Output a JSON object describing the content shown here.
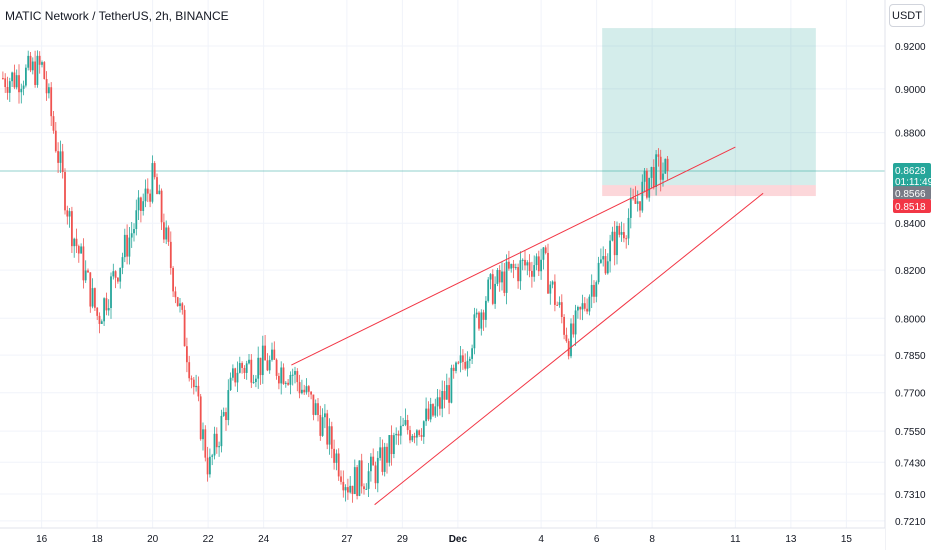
{
  "header": {
    "symbol": "MATIC Network / TetherUS",
    "interval": "2h",
    "exchange": "BINANCE"
  },
  "currency_button": "USDT",
  "colors": {
    "up": "#26a69a",
    "down": "#ef5350",
    "trendline": "#f23645",
    "target_zone": "rgba(38,166,154,0.2)",
    "stop_zone": "rgba(242,54,69,0.2)",
    "current_price_line": "#26a69a",
    "grid": "#f0f3fa",
    "axis_text": "#131722"
  },
  "price_axis": {
    "ticks": [
      "0.9200",
      "0.9000",
      "0.8800",
      "0.8400",
      "0.8200",
      "0.8000",
      "0.7850",
      "0.7700",
      "0.7550",
      "0.7430",
      "0.7310",
      "0.7210"
    ],
    "labels": [
      {
        "text": "0.8628",
        "sub": "01:11:49",
        "color": "#26a69a"
      },
      {
        "text": "0.8566",
        "color": "#787b86"
      },
      {
        "text": "0.8518",
        "color": "#f23645"
      }
    ]
  },
  "time_axis": {
    "ticks": [
      "16",
      "18",
      "20",
      "22",
      "24",
      "27",
      "29",
      "Dec",
      "4",
      "6",
      "8",
      "11",
      "13",
      "15"
    ]
  },
  "chart_data": {
    "type": "candlestick",
    "symbol": "MATIC Network / TetherUS",
    "interval": "2h",
    "exchange": "BINANCE",
    "y_axis": {
      "scale": "log",
      "ticks": [
        0.92,
        0.9,
        0.88,
        0.84,
        0.82,
        0.8,
        0.785,
        0.77,
        0.755,
        0.743,
        0.731,
        0.721
      ],
      "range": [
        0.719,
        0.945
      ]
    },
    "x_axis": {
      "tick_labels": [
        "16",
        "18",
        "20",
        "22",
        "24",
        "27",
        "29",
        "Dec",
        "4",
        "6",
        "8",
        "11",
        "13",
        "15"
      ]
    },
    "last_price": 0.8628,
    "countdown": "01:11:49",
    "position": {
      "entry": 0.8566,
      "stop": 0.8518,
      "target": 0.9285
    },
    "rising_wedge": {
      "upper_trendline": [
        {
          "x": "Nov 25",
          "y": 0.781
        },
        {
          "x": "Dec 11",
          "y": 0.8735
        }
      ],
      "lower_trendline": [
        {
          "x": "Nov 28",
          "y": 0.727
        },
        {
          "x": "Dec 12",
          "y": 0.853
        }
      ]
    },
    "price_path": [
      {
        "x": "Nov 15",
        "y": 0.905
      },
      {
        "x": "Nov 16",
        "y": 0.91
      },
      {
        "x": "Nov 17",
        "y": 0.84
      },
      {
        "x": "Nov 18",
        "y": 0.8
      },
      {
        "x": "Nov 19",
        "y": 0.83
      },
      {
        "x": "Nov 20",
        "y": 0.86
      },
      {
        "x": "Nov 21",
        "y": 0.8
      },
      {
        "x": "Nov 22",
        "y": 0.74
      },
      {
        "x": "Nov 23",
        "y": 0.78
      },
      {
        "x": "Nov 24",
        "y": 0.782
      },
      {
        "x": "Nov 25",
        "y": 0.778
      },
      {
        "x": "Nov 26",
        "y": 0.76
      },
      {
        "x": "Nov 27",
        "y": 0.735
      },
      {
        "x": "Nov 28",
        "y": 0.74
      },
      {
        "x": "Nov 29",
        "y": 0.755
      },
      {
        "x": "Nov 30",
        "y": 0.76
      },
      {
        "x": "Dec 1",
        "y": 0.778
      },
      {
        "x": "Dec 2",
        "y": 0.81
      },
      {
        "x": "Dec 3",
        "y": 0.82
      },
      {
        "x": "Dec 4",
        "y": 0.825
      },
      {
        "x": "Dec 5",
        "y": 0.79
      },
      {
        "x": "Dec 6",
        "y": 0.82
      },
      {
        "x": "Dec 7",
        "y": 0.84
      },
      {
        "x": "Dec 8",
        "y": 0.8628
      }
    ]
  }
}
